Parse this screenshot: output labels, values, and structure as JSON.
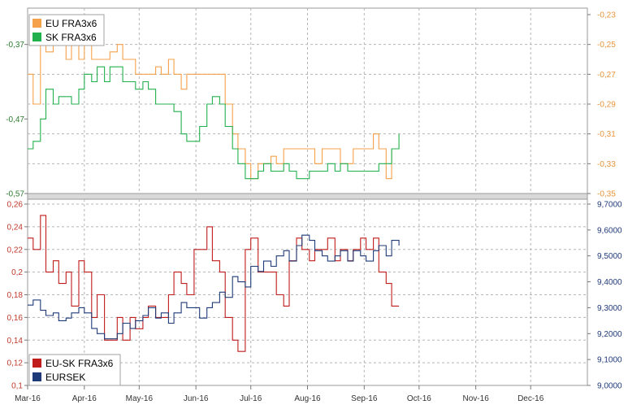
{
  "chart_data": [
    {
      "type": "line",
      "panel": "top",
      "colors": {
        "left_axis": "#2e7d32",
        "right_axis": "#e8943a"
      },
      "left_axis": {
        "ticks": [
          "-0,37",
          "-0,47",
          "-0,57"
        ],
        "ylim": [
          -0.57,
          -0.33
        ]
      },
      "right_axis": {
        "ticks": [
          "-0,23",
          "-0,25",
          "-0,27",
          "-0,29",
          "-0,31",
          "-0,33",
          "-0,35"
        ],
        "ylim": [
          -0.35,
          -0.23
        ]
      },
      "legend": {
        "placement": "top-left",
        "entries": [
          "EU FRA3x6",
          "SK FRA3x6"
        ]
      },
      "grid": true,
      "series": [
        {
          "name": "EU FRA3x6",
          "axis": "right",
          "color": "#f5a04a",
          "x": [
            "2016-03-01",
            "2016-03-04",
            "2016-03-08",
            "2016-03-11",
            "2016-03-15",
            "2016-03-18",
            "2016-03-22",
            "2016-03-25",
            "2016-03-29",
            "2016-04-01",
            "2016-04-05",
            "2016-04-08",
            "2016-04-12",
            "2016-04-15",
            "2016-04-19",
            "2016-04-22",
            "2016-04-26",
            "2016-04-29",
            "2016-05-03",
            "2016-05-06",
            "2016-05-10",
            "2016-05-13",
            "2016-05-17",
            "2016-05-20",
            "2016-05-24",
            "2016-05-27",
            "2016-05-31",
            "2016-06-03",
            "2016-06-07",
            "2016-06-10",
            "2016-06-14",
            "2016-06-17",
            "2016-06-21",
            "2016-06-24",
            "2016-06-28",
            "2016-07-01",
            "2016-07-05",
            "2016-07-08",
            "2016-07-12",
            "2016-07-15",
            "2016-07-19",
            "2016-07-22",
            "2016-07-26",
            "2016-07-29",
            "2016-08-02",
            "2016-08-05",
            "2016-08-09",
            "2016-08-12",
            "2016-08-16",
            "2016-08-19",
            "2016-08-23",
            "2016-08-26",
            "2016-08-30",
            "2016-09-02",
            "2016-09-06",
            "2016-09-09",
            "2016-09-13",
            "2016-09-16",
            "2016-09-20"
          ],
          "values": [
            -0.27,
            -0.29,
            -0.24,
            -0.255,
            -0.23,
            -0.25,
            -0.26,
            -0.25,
            -0.26,
            -0.25,
            -0.26,
            -0.26,
            -0.26,
            -0.255,
            -0.25,
            -0.26,
            -0.26,
            -0.27,
            -0.27,
            -0.27,
            -0.265,
            -0.27,
            -0.26,
            -0.27,
            -0.28,
            -0.27,
            -0.27,
            -0.27,
            -0.27,
            -0.27,
            -0.27,
            -0.29,
            -0.31,
            -0.32,
            -0.33,
            -0.34,
            -0.33,
            -0.33,
            -0.325,
            -0.33,
            -0.32,
            -0.32,
            -0.32,
            -0.32,
            -0.32,
            -0.33,
            -0.32,
            -0.32,
            -0.32,
            -0.33,
            -0.33,
            -0.32,
            -0.32,
            -0.32,
            -0.31,
            -0.32,
            -0.34,
            -0.32,
            -0.32
          ]
        },
        {
          "name": "SK FRA3x6",
          "axis": "left",
          "color": "#22b04e",
          "x": [
            "2016-03-01",
            "2016-03-04",
            "2016-03-08",
            "2016-03-11",
            "2016-03-15",
            "2016-03-18",
            "2016-03-22",
            "2016-03-25",
            "2016-03-29",
            "2016-04-01",
            "2016-04-05",
            "2016-04-08",
            "2016-04-12",
            "2016-04-15",
            "2016-04-19",
            "2016-04-22",
            "2016-04-26",
            "2016-04-29",
            "2016-05-03",
            "2016-05-06",
            "2016-05-10",
            "2016-05-13",
            "2016-05-17",
            "2016-05-20",
            "2016-05-24",
            "2016-05-27",
            "2016-05-31",
            "2016-06-03",
            "2016-06-07",
            "2016-06-10",
            "2016-06-14",
            "2016-06-17",
            "2016-06-21",
            "2016-06-24",
            "2016-06-28",
            "2016-07-01",
            "2016-07-05",
            "2016-07-08",
            "2016-07-12",
            "2016-07-15",
            "2016-07-19",
            "2016-07-22",
            "2016-07-26",
            "2016-07-29",
            "2016-08-02",
            "2016-08-05",
            "2016-08-09",
            "2016-08-12",
            "2016-08-16",
            "2016-08-19",
            "2016-08-23",
            "2016-08-26",
            "2016-08-30",
            "2016-09-02",
            "2016-09-06",
            "2016-09-09",
            "2016-09-13",
            "2016-09-16",
            "2016-09-20"
          ],
          "values": [
            -0.51,
            -0.5,
            -0.47,
            -0.43,
            -0.45,
            -0.44,
            -0.44,
            -0.45,
            -0.43,
            -0.41,
            -0.42,
            -0.4,
            -0.42,
            -0.4,
            -0.4,
            -0.42,
            -0.42,
            -0.43,
            -0.42,
            -0.43,
            -0.45,
            -0.45,
            -0.45,
            -0.46,
            -0.49,
            -0.5,
            -0.5,
            -0.48,
            -0.45,
            -0.44,
            -0.45,
            -0.48,
            -0.51,
            -0.53,
            -0.55,
            -0.55,
            -0.54,
            -0.53,
            -0.54,
            -0.54,
            -0.53,
            -0.54,
            -0.55,
            -0.55,
            -0.54,
            -0.54,
            -0.54,
            -0.53,
            -0.54,
            -0.53,
            -0.54,
            -0.54,
            -0.54,
            -0.54,
            -0.54,
            -0.53,
            -0.53,
            -0.51,
            -0.49
          ]
        }
      ]
    },
    {
      "type": "line",
      "panel": "bottom",
      "colors": {
        "left_axis": "#c0392b",
        "right_axis": "#1f3a78"
      },
      "left_axis": {
        "ticks": [
          "0,26",
          "0,24",
          "0,22",
          "0,2",
          "0,18",
          "0,16",
          "0,14",
          "0,12",
          "0,1"
        ],
        "ylim": [
          0.1,
          0.26
        ]
      },
      "right_axis": {
        "ticks": [
          "9,7000",
          "9,6000",
          "9,5000",
          "9,4000",
          "9,3000",
          "9,2000",
          "9,1000",
          "9,0000"
        ],
        "ylim": [
          9.0,
          9.7
        ]
      },
      "x_ticks": [
        "Mar-16",
        "Apr-16",
        "May-16",
        "Jun-16",
        "Jul-16",
        "Aug-16",
        "Sep-16",
        "Oct-16",
        "Nov-16",
        "Dec-16"
      ],
      "legend": {
        "placement": "bottom-left",
        "entries": [
          "EU-SK FRA3x6",
          "EURSEK"
        ]
      },
      "grid": true,
      "series": [
        {
          "name": "EU-SK FRA3x6",
          "axis": "left",
          "color": "#c01c1c",
          "x": [
            "2016-03-01",
            "2016-03-04",
            "2016-03-08",
            "2016-03-11",
            "2016-03-15",
            "2016-03-18",
            "2016-03-22",
            "2016-03-25",
            "2016-03-29",
            "2016-04-01",
            "2016-04-05",
            "2016-04-08",
            "2016-04-12",
            "2016-04-15",
            "2016-04-19",
            "2016-04-22",
            "2016-04-26",
            "2016-04-29",
            "2016-05-03",
            "2016-05-06",
            "2016-05-10",
            "2016-05-13",
            "2016-05-17",
            "2016-05-20",
            "2016-05-24",
            "2016-05-27",
            "2016-05-31",
            "2016-06-03",
            "2016-06-07",
            "2016-06-10",
            "2016-06-14",
            "2016-06-17",
            "2016-06-21",
            "2016-06-24",
            "2016-06-28",
            "2016-07-01",
            "2016-07-05",
            "2016-07-08",
            "2016-07-12",
            "2016-07-15",
            "2016-07-19",
            "2016-07-22",
            "2016-07-26",
            "2016-07-29",
            "2016-08-02",
            "2016-08-05",
            "2016-08-09",
            "2016-08-12",
            "2016-08-16",
            "2016-08-19",
            "2016-08-23",
            "2016-08-26",
            "2016-08-30",
            "2016-09-02",
            "2016-09-06",
            "2016-09-09",
            "2016-09-13",
            "2016-09-16",
            "2016-09-20"
          ],
          "values": [
            0.23,
            0.22,
            0.25,
            0.2,
            0.21,
            0.19,
            0.2,
            0.17,
            0.21,
            0.2,
            0.16,
            0.18,
            0.14,
            0.14,
            0.16,
            0.14,
            0.16,
            0.15,
            0.16,
            0.17,
            0.16,
            0.16,
            0.18,
            0.2,
            0.19,
            0.18,
            0.22,
            0.22,
            0.24,
            0.21,
            0.2,
            0.16,
            0.14,
            0.13,
            0.22,
            0.23,
            0.2,
            0.2,
            0.2,
            0.18,
            0.17,
            0.21,
            0.23,
            0.22,
            0.21,
            0.22,
            0.22,
            0.23,
            0.21,
            0.22,
            0.21,
            0.22,
            0.23,
            0.22,
            0.23,
            0.2,
            0.19,
            0.17,
            0.17
          ]
        },
        {
          "name": "EURSEK",
          "axis": "right",
          "color": "#1f3a78",
          "x": [
            "2016-03-01",
            "2016-03-04",
            "2016-03-08",
            "2016-03-11",
            "2016-03-15",
            "2016-03-18",
            "2016-03-22",
            "2016-03-25",
            "2016-03-29",
            "2016-04-01",
            "2016-04-05",
            "2016-04-08",
            "2016-04-12",
            "2016-04-15",
            "2016-04-19",
            "2016-04-22",
            "2016-04-26",
            "2016-04-29",
            "2016-05-03",
            "2016-05-06",
            "2016-05-10",
            "2016-05-13",
            "2016-05-17",
            "2016-05-20",
            "2016-05-24",
            "2016-05-27",
            "2016-05-31",
            "2016-06-03",
            "2016-06-07",
            "2016-06-10",
            "2016-06-14",
            "2016-06-17",
            "2016-06-21",
            "2016-06-24",
            "2016-06-28",
            "2016-07-01",
            "2016-07-05",
            "2016-07-08",
            "2016-07-12",
            "2016-07-15",
            "2016-07-19",
            "2016-07-22",
            "2016-07-26",
            "2016-07-29",
            "2016-08-02",
            "2016-08-05",
            "2016-08-09",
            "2016-08-12",
            "2016-08-16",
            "2016-08-19",
            "2016-08-23",
            "2016-08-26",
            "2016-08-30",
            "2016-09-02",
            "2016-09-06",
            "2016-09-09",
            "2016-09-13",
            "2016-09-16",
            "2016-09-20"
          ],
          "values": [
            9.31,
            9.33,
            9.29,
            9.27,
            9.28,
            9.25,
            9.26,
            9.28,
            9.3,
            9.28,
            9.22,
            9.2,
            9.18,
            9.18,
            9.2,
            9.24,
            9.22,
            9.25,
            9.27,
            9.3,
            9.26,
            9.28,
            9.24,
            9.28,
            9.32,
            9.3,
            9.3,
            9.26,
            9.3,
            9.32,
            9.36,
            9.34,
            9.42,
            9.4,
            9.38,
            9.46,
            9.44,
            9.48,
            9.46,
            9.5,
            9.52,
            9.48,
            9.54,
            9.58,
            9.56,
            9.52,
            9.5,
            9.48,
            9.5,
            9.52,
            9.48,
            9.52,
            9.5,
            9.48,
            9.52,
            9.54,
            9.5,
            9.56,
            9.54
          ]
        }
      ]
    }
  ]
}
